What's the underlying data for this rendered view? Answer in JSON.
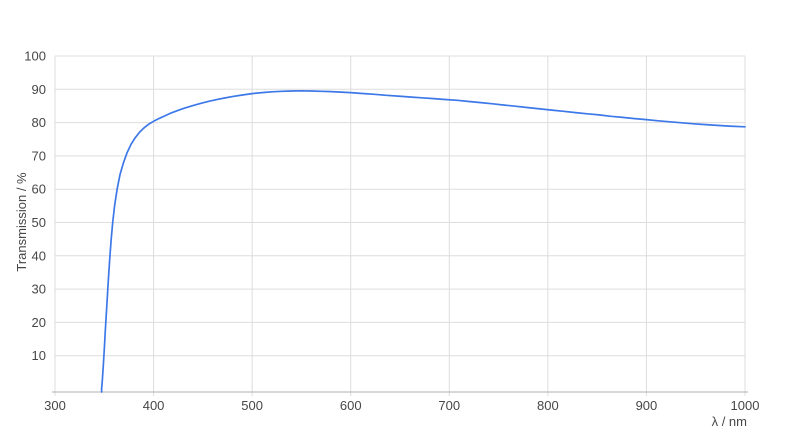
{
  "page": {
    "background": "#ffffff"
  },
  "chart_data": {
    "type": "line",
    "title": "",
    "xlabel": "λ / nm",
    "ylabel": "Transmission / %",
    "xlim": [
      300,
      1000
    ],
    "ylim": [
      0,
      100
    ],
    "x_ticks": [
      300,
      400,
      500,
      600,
      700,
      800,
      900,
      1000
    ],
    "y_ticks": [
      10,
      20,
      30,
      40,
      50,
      60,
      70,
      80,
      90,
      100
    ],
    "grid": true,
    "legend": "none",
    "colors": {
      "line": "#3d78e9",
      "grid": "#dddddd",
      "axis": "#b0b0b0",
      "text": "#474747",
      "background": "#ffffff"
    },
    "series": [
      {
        "name": "Transmission",
        "color": "#3d78e9",
        "points": [
          [
            347.3,
            0
          ],
          [
            348,
            2.5
          ],
          [
            349,
            7
          ],
          [
            350,
            12
          ],
          [
            351,
            17.5
          ],
          [
            352.5,
            25
          ],
          [
            354,
            32
          ],
          [
            355.5,
            39
          ],
          [
            357,
            45
          ],
          [
            358.5,
            50
          ],
          [
            360.5,
            55
          ],
          [
            363,
            60
          ],
          [
            366,
            64.5
          ],
          [
            369.5,
            68
          ],
          [
            373,
            70.9
          ],
          [
            377,
            73.4
          ],
          [
            381,
            75.3
          ],
          [
            386,
            77.2
          ],
          [
            391,
            78.6
          ],
          [
            396,
            79.7
          ],
          [
            400,
            80.4
          ],
          [
            406,
            81.3
          ],
          [
            412,
            82.1
          ],
          [
            418,
            82.9
          ],
          [
            425,
            83.7
          ],
          [
            432,
            84.4
          ],
          [
            440,
            85.1
          ],
          [
            448,
            85.8
          ],
          [
            456,
            86.4
          ],
          [
            464,
            86.9
          ],
          [
            472,
            87.4
          ],
          [
            480,
            87.8
          ],
          [
            490,
            88.3
          ],
          [
            500,
            88.7
          ],
          [
            510,
            89.0
          ],
          [
            520,
            89.25
          ],
          [
            530,
            89.4
          ],
          [
            540,
            89.5
          ],
          [
            550,
            89.55
          ],
          [
            560,
            89.5
          ],
          [
            570,
            89.4
          ],
          [
            580,
            89.3
          ],
          [
            590,
            89.15
          ],
          [
            600,
            89.0
          ],
          [
            612,
            88.75
          ],
          [
            624,
            88.5
          ],
          [
            636,
            88.2
          ],
          [
            648,
            87.95
          ],
          [
            660,
            87.7
          ],
          [
            672,
            87.45
          ],
          [
            684,
            87.2
          ],
          [
            696,
            86.95
          ],
          [
            708,
            86.7
          ],
          [
            720,
            86.35
          ],
          [
            732,
            86.0
          ],
          [
            744,
            85.65
          ],
          [
            756,
            85.25
          ],
          [
            768,
            84.9
          ],
          [
            780,
            84.5
          ],
          [
            792,
            84.1
          ],
          [
            804,
            83.75
          ],
          [
            816,
            83.4
          ],
          [
            828,
            83.0
          ],
          [
            840,
            82.65
          ],
          [
            852,
            82.3
          ],
          [
            864,
            81.9
          ],
          [
            876,
            81.55
          ],
          [
            888,
            81.2
          ],
          [
            900,
            80.9
          ],
          [
            912,
            80.55
          ],
          [
            924,
            80.25
          ],
          [
            936,
            79.95
          ],
          [
            948,
            79.65
          ],
          [
            960,
            79.4
          ],
          [
            972,
            79.15
          ],
          [
            984,
            78.95
          ],
          [
            1000,
            78.75
          ]
        ]
      }
    ]
  }
}
